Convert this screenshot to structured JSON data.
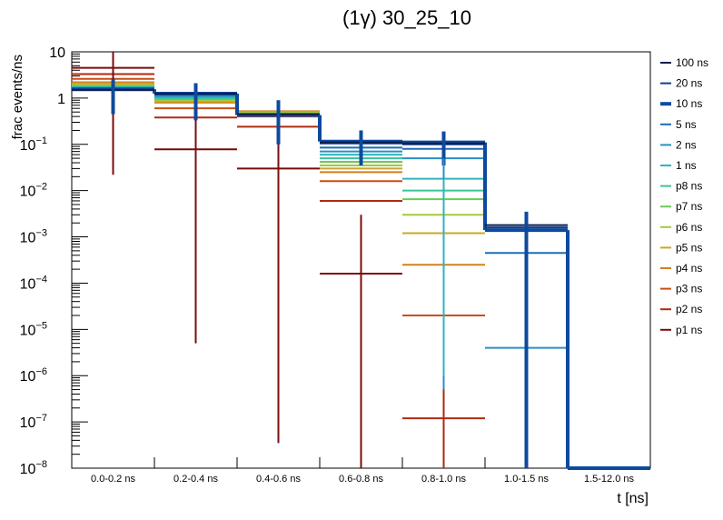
{
  "chart_data": {
    "type": "line",
    "title": "(1γ) 30_25_10",
    "xlabel": "t [ns]",
    "ylabel": "frac events/ns",
    "yscale": "log",
    "ylim": [
      1e-08,
      10
    ],
    "categories": [
      "0.0-0.2 ns",
      "0.2-0.4 ns",
      "0.4-0.6 ns",
      "0.6-0.8 ns",
      "0.8-1.0 ns",
      "1.0-1.5 ns",
      "1.5-12.0 ns"
    ],
    "y_ticks": [
      {
        "base": "10",
        "exp": "",
        "value": 10
      },
      {
        "base": "1",
        "exp": "",
        "value": 1
      },
      {
        "base": "10",
        "exp": "−1",
        "value": 0.1
      },
      {
        "base": "10",
        "exp": "−2",
        "value": 0.01
      },
      {
        "base": "10",
        "exp": "−3",
        "value": 0.001
      },
      {
        "base": "10",
        "exp": "−4",
        "value": 0.0001
      },
      {
        "base": "10",
        "exp": "−5",
        "value": 1e-05
      },
      {
        "base": "10",
        "exp": "−6",
        "value": 1e-06
      },
      {
        "base": "10",
        "exp": "−7",
        "value": 1e-07
      },
      {
        "base": "10",
        "exp": "−8",
        "value": 1e-08
      }
    ],
    "legend_position": "right",
    "series": [
      {
        "name": "100 ns",
        "color": "#0b1f4a",
        "values": [
          1.5,
          1.25,
          0.45,
          0.11,
          0.105,
          0.0018,
          null
        ]
      },
      {
        "name": "20 ns",
        "color": "#143d8a",
        "values": [
          1.52,
          1.24,
          0.44,
          0.105,
          0.1,
          0.0016,
          null
        ]
      },
      {
        "name": "10 ns",
        "color": "#0d4a9e",
        "bold": true,
        "values": [
          1.55,
          1.25,
          0.43,
          0.115,
          0.11,
          0.0014,
          1e-08
        ]
      },
      {
        "name": "5 ns",
        "color": "#1e6bb8",
        "values": [
          1.6,
          1.2,
          0.42,
          0.085,
          0.08,
          0.00045,
          null
        ]
      },
      {
        "name": "2 ns",
        "color": "#2b8fc4",
        "values": [
          1.65,
          1.1,
          0.43,
          0.07,
          0.05,
          4e-06,
          null
        ]
      },
      {
        "name": "1 ns",
        "color": "#2fb3c0",
        "values": [
          1.7,
          1.05,
          0.44,
          0.06,
          0.018,
          null,
          null
        ]
      },
      {
        "name": "p8 ns",
        "color": "#3cc39a",
        "values": [
          1.75,
          1.0,
          0.45,
          0.05,
          0.01,
          null,
          null
        ]
      },
      {
        "name": "p7 ns",
        "color": "#6bc95a",
        "values": [
          1.8,
          0.95,
          0.46,
          0.042,
          0.0065,
          null,
          null
        ]
      },
      {
        "name": "p6 ns",
        "color": "#a5c93a",
        "values": [
          1.9,
          0.9,
          0.48,
          0.035,
          0.003,
          null,
          null
        ]
      },
      {
        "name": "p5 ns",
        "color": "#c8a82c",
        "values": [
          2.0,
          0.85,
          0.5,
          0.03,
          0.0012,
          null,
          null
        ]
      },
      {
        "name": "p4 ns",
        "color": "#d2801f",
        "values": [
          2.2,
          0.8,
          0.52,
          0.025,
          0.00025,
          null,
          null
        ]
      },
      {
        "name": "p3 ns",
        "color": "#c94e15",
        "values": [
          2.6,
          0.6,
          0.4,
          0.016,
          2e-05,
          null,
          null
        ]
      },
      {
        "name": "p2 ns",
        "color": "#b02a10",
        "values": [
          3.3,
          0.38,
          0.24,
          0.006,
          1.2e-07,
          null,
          null
        ]
      },
      {
        "name": "p1 ns",
        "color": "#7a0c0c",
        "values": [
          4.5,
          0.078,
          0.03,
          0.00016,
          null,
          null,
          null
        ]
      }
    ],
    "error_bars": [
      {
        "series": "p1 ns",
        "bin": 0,
        "low": 0.022,
        "high": 10
      },
      {
        "series": "p1 ns",
        "bin": 1,
        "low": 5e-06,
        "high": 0.35
      },
      {
        "series": "p1 ns",
        "bin": 2,
        "low": 3.5e-08,
        "high": 0.3
      },
      {
        "series": "p1 ns",
        "bin": 3,
        "low": 1e-08,
        "high": 0.003
      },
      {
        "series": "p2 ns",
        "bin": 4,
        "low": 1e-08,
        "high": 2.5e-06
      },
      {
        "series": "p3 ns",
        "bin": 4,
        "low": 3.5e-06,
        "high": 4e-05
      },
      {
        "series": "p4 ns",
        "bin": 4,
        "low": 7e-05,
        "high": 0.0009
      },
      {
        "series": "10 ns",
        "bin": 0,
        "low": 0.45,
        "high": 2.6
      },
      {
        "series": "10 ns",
        "bin": 1,
        "low": 0.33,
        "high": 2.1
      },
      {
        "series": "10 ns",
        "bin": 2,
        "low": 0.1,
        "high": 0.9
      },
      {
        "series": "10 ns",
        "bin": 3,
        "low": 0.035,
        "high": 0.2
      },
      {
        "series": "10 ns",
        "bin": 4,
        "low": 0.035,
        "high": 0.19
      },
      {
        "series": "10 ns",
        "bin": 5,
        "low": 1e-08,
        "high": 0.0035
      },
      {
        "series": "2 ns",
        "bin": 4,
        "low": 5e-07,
        "high": 0.05
      },
      {
        "series": "1 ns",
        "bin": 4,
        "low": 1e-06,
        "high": 0.018
      }
    ]
  }
}
